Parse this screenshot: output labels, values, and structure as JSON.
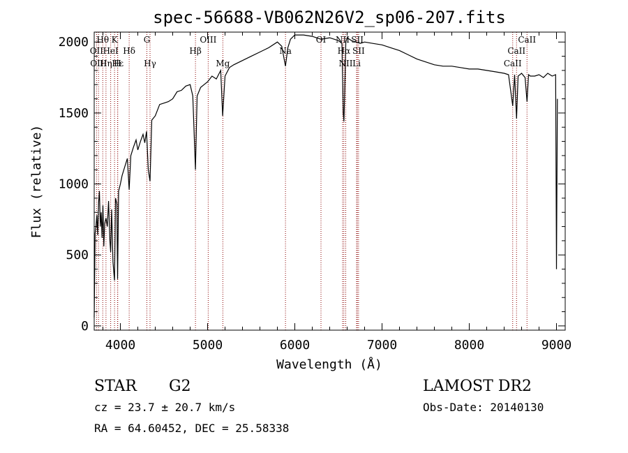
{
  "chart_data": {
    "type": "line",
    "title": "spec-56688-VB062N26V2_sp06-207.fits",
    "xlabel": "Wavelength (Å)",
    "ylabel": "Flux (relative)",
    "xlim": [
      3700,
      9100
    ],
    "ylim": [
      -30,
      2070
    ],
    "x_ticks": [
      4000,
      5000,
      6000,
      7000,
      8000,
      9000
    ],
    "y_ticks": [
      0,
      500,
      1000,
      1500,
      2000
    ],
    "grid": false,
    "series": [
      {
        "x": [
          3700,
          3710,
          3720,
          3730,
          3740,
          3750,
          3760,
          3770,
          3780,
          3790,
          3800,
          3810,
          3820,
          3835,
          3850,
          3865,
          3880,
          3889,
          3900,
          3915,
          3933,
          3945,
          3960,
          3968,
          3980,
          4000,
          4020,
          4040,
          4060,
          4080,
          4101,
          4120,
          4150,
          4180,
          4200,
          4230,
          4260,
          4280,
          4300,
          4320,
          4340,
          4360,
          4400,
          4450,
          4500,
          4550,
          4600,
          4650,
          4700,
          4750,
          4800,
          4830,
          4861,
          4880,
          4920,
          4960,
          5000,
          5050,
          5100,
          5150,
          5173,
          5200,
          5250,
          5300,
          5400,
          5500,
          5600,
          5700,
          5800,
          5850,
          5893,
          5920,
          5950,
          6000,
          6100,
          6200,
          6300,
          6400,
          6500,
          6540,
          6556,
          6563,
          6570,
          6585,
          6600,
          6650,
          6700,
          6750,
          6800,
          6900,
          7000,
          7100,
          7200,
          7300,
          7400,
          7500,
          7600,
          7700,
          7800,
          7900,
          8000,
          8100,
          8200,
          8300,
          8400,
          8450,
          8498,
          8520,
          8542,
          8560,
          8600,
          8640,
          8662,
          8680,
          8700,
          8750,
          8800,
          8850,
          8900,
          8950,
          8990,
          9000,
          9010
        ],
        "y": [
          60,
          650,
          700,
          780,
          640,
          870,
          950,
          700,
          800,
          620,
          850,
          560,
          720,
          760,
          700,
          880,
          600,
          520,
          820,
          450,
          320,
          900,
          860,
          330,
          950,
          1000,
          1060,
          1100,
          1140,
          1180,
          960,
          1200,
          1260,
          1310,
          1240,
          1300,
          1350,
          1290,
          1370,
          1100,
          1020,
          1450,
          1480,
          1560,
          1570,
          1580,
          1600,
          1650,
          1660,
          1690,
          1700,
          1620,
          1100,
          1620,
          1680,
          1700,
          1720,
          1760,
          1740,
          1800,
          1480,
          1760,
          1820,
          1840,
          1870,
          1900,
          1930,
          1960,
          2000,
          1970,
          1830,
          1960,
          2020,
          2050,
          2050,
          2040,
          2020,
          2030,
          2010,
          1990,
          1500,
          1440,
          1600,
          2000,
          2030,
          2010,
          2000,
          1990,
          2000,
          1990,
          1980,
          1960,
          1940,
          1910,
          1880,
          1860,
          1840,
          1830,
          1830,
          1820,
          1810,
          1810,
          1800,
          1790,
          1780,
          1770,
          1550,
          1770,
          1460,
          1760,
          1780,
          1750,
          1580,
          1770,
          1760,
          1760,
          1770,
          1750,
          1780,
          1760,
          1770,
          400,
          1600
        ]
      }
    ],
    "spectral_lines": [
      {
        "name": "Hθ",
        "wavelength": 3798,
        "row": 0
      },
      {
        "name": "OII",
        "wavelength": 3727,
        "row": 1
      },
      {
        "name": "Hη",
        "wavelength": 3835,
        "row": 2
      },
      {
        "name": "OIII",
        "wavelength": 3750,
        "row": 2
      },
      {
        "name": "K",
        "wavelength": 3933,
        "row": 0
      },
      {
        "name": "HeI",
        "wavelength": 3889,
        "row": 1
      },
      {
        "name": "Hε",
        "wavelength": 3970,
        "row": 2
      },
      {
        "name": "H",
        "wavelength": 3968,
        "row": 2
      },
      {
        "name": "Hδ",
        "wavelength": 4101,
        "row": 1
      },
      {
        "name": "G",
        "wavelength": 4304,
        "row": 0
      },
      {
        "name": "Hγ",
        "wavelength": 4340,
        "row": 2
      },
      {
        "name": "OIII",
        "wavelength": 5007,
        "row": 0
      },
      {
        "name": "Hβ",
        "wavelength": 4861,
        "row": 1
      },
      {
        "name": "Mg",
        "wavelength": 5175,
        "row": 2
      },
      {
        "name": "Na",
        "wavelength": 5893,
        "row": 1
      },
      {
        "name": "OI",
        "wavelength": 6300,
        "row": 0
      },
      {
        "name": "NII",
        "wavelength": 6548,
        "row": 0
      },
      {
        "name": "SII",
        "wavelength": 6717,
        "row": 0
      },
      {
        "name": "Hα",
        "wavelength": 6563,
        "row": 1
      },
      {
        "name": "SII",
        "wavelength": 6731,
        "row": 1
      },
      {
        "name": "NII",
        "wavelength": 6584,
        "row": 2
      },
      {
        "name": "Li",
        "wavelength": 6708,
        "row": 2
      },
      {
        "name": "CaII",
        "wavelength": 8662,
        "row": 0
      },
      {
        "name": "CaII",
        "wavelength": 8542,
        "row": 1
      },
      {
        "name": "CaII",
        "wavelength": 8498,
        "row": 2
      }
    ]
  },
  "info": {
    "object_class": "STAR",
    "subclass": "G2",
    "survey": "LAMOST DR2",
    "redshift": "cz = 23.7 ± 20.7 km/s",
    "obs_date": "Obs-Date: 20140130",
    "coords": "RA =  64.60452, DEC =  25.58338"
  },
  "colors": {
    "spectrum": "#000000",
    "line_markers": "#8b0000",
    "axes": "#000000"
  }
}
